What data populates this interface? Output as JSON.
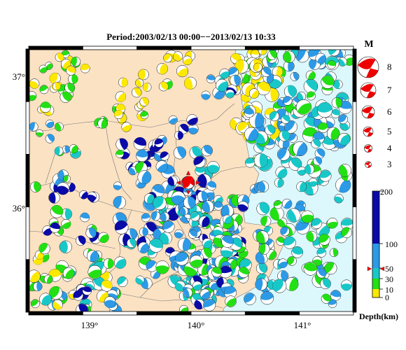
{
  "title": "Period:2003/02/13 00:00−−2013/02/13 10:33",
  "axes": {
    "lon_ticks": [
      "139°",
      "140°",
      "141°"
    ],
    "lat_ticks": [
      "37°",
      "36°"
    ]
  },
  "magnitude_legend": {
    "title": "M",
    "entries": [
      "8",
      "7",
      "6",
      "5",
      "4",
      "3"
    ]
  },
  "depth_legend": {
    "title": "Depth(km)",
    "ticks": [
      "200",
      "100",
      "50",
      "30",
      "10",
      "0"
    ]
  },
  "colors": {
    "land": "#fbe2c3",
    "sea": "#dcf8fd",
    "depth_0_10": "#fde800",
    "depth_10_30": "#22e014",
    "depth_30_50": "#18c8c8",
    "depth_50_100": "#2c9ae6",
    "depth_100_200": "#0a0aa8",
    "highlight": "#ee0000"
  }
}
